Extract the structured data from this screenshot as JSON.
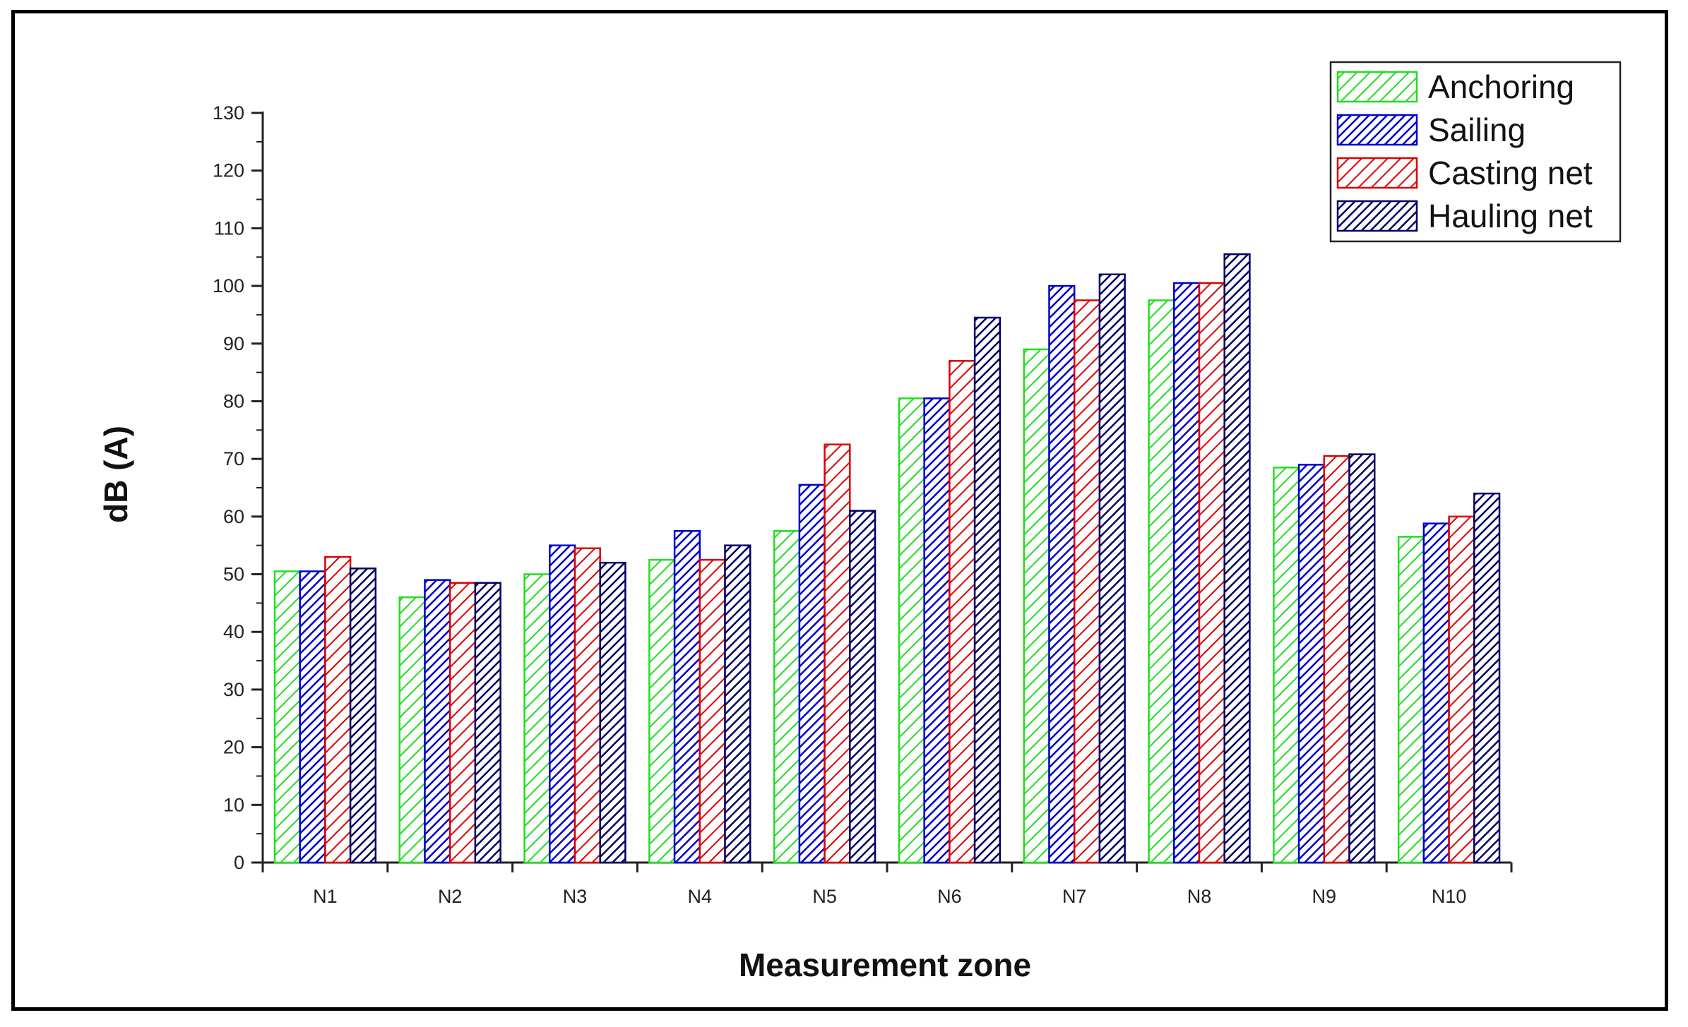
{
  "chart_data": {
    "type": "bar",
    "title": "",
    "xlabel": "Measurement zone",
    "ylabel": "dB (A)",
    "ylim": [
      0,
      130
    ],
    "yticks": [
      "0",
      "10",
      "20",
      "30",
      "40",
      "50",
      "60",
      "70",
      "80",
      "90",
      "100",
      "110",
      "120",
      "130"
    ],
    "categories": [
      "N1",
      "N2",
      "N3",
      "N4",
      "N5",
      "N6",
      "N7",
      "N8",
      "N9",
      "N10"
    ],
    "grid": false,
    "legend_position": "top-right",
    "series": [
      {
        "name": "Anchoring",
        "color": "#22dd22",
        "pattern": "sparse-diagonal",
        "values": [
          50.5,
          46,
          50,
          52.5,
          57.5,
          80.5,
          89,
          97.5,
          68.5,
          56.5
        ]
      },
      {
        "name": "Sailing",
        "color": "#0000cc",
        "pattern": "dense-diagonal",
        "values": [
          50.5,
          49,
          55,
          57.5,
          65.5,
          80.5,
          100,
          100.5,
          69,
          58.8
        ]
      },
      {
        "name": "Casting net",
        "color": "#dd0000",
        "pattern": "sparse-diagonal",
        "values": [
          53,
          48.5,
          54.5,
          52.5,
          72.5,
          87,
          97.5,
          100.5,
          70.5,
          60
        ]
      },
      {
        "name": "Hauling net",
        "color": "#000066",
        "pattern": "dense-diagonal",
        "values": [
          51,
          48.5,
          52,
          55,
          61,
          94.5,
          102,
          105.5,
          70.8,
          64
        ]
      }
    ]
  }
}
